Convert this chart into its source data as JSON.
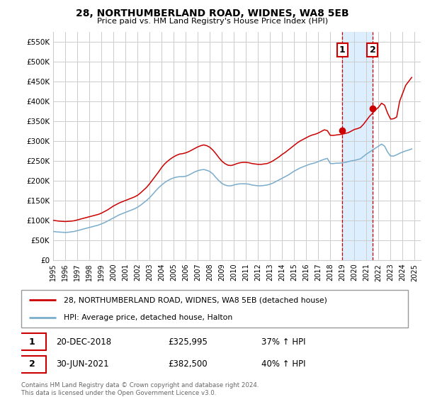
{
  "title": "28, NORTHUMBERLAND ROAD, WIDNES, WA8 5EB",
  "subtitle": "Price paid vs. HM Land Registry's House Price Index (HPI)",
  "ylim": [
    0,
    575000
  ],
  "xlim_start": 1995.0,
  "xlim_end": 2025.5,
  "yticks": [
    0,
    50000,
    100000,
    150000,
    200000,
    250000,
    300000,
    350000,
    400000,
    450000,
    500000,
    550000
  ],
  "ytick_labels": [
    "£0",
    "£50K",
    "£100K",
    "£150K",
    "£200K",
    "£250K",
    "£300K",
    "£350K",
    "£400K",
    "£450K",
    "£500K",
    "£550K"
  ],
  "xticks": [
    1995,
    1996,
    1997,
    1998,
    1999,
    2000,
    2001,
    2002,
    2003,
    2004,
    2005,
    2006,
    2007,
    2008,
    2009,
    2010,
    2011,
    2012,
    2013,
    2014,
    2015,
    2016,
    2017,
    2018,
    2019,
    2020,
    2021,
    2022,
    2023,
    2024,
    2025
  ],
  "bg_color": "#ffffff",
  "plot_bg_color": "#ffffff",
  "grid_color": "#cccccc",
  "red_line_color": "#cc0000",
  "blue_line_color": "#7aaccc",
  "highlight_bg_color": "#ddeeff",
  "vline_color": "#cc0000",
  "marker1_date": 2019.0,
  "marker2_date": 2021.5,
  "marker1_value": 325995,
  "marker2_value": 382500,
  "marker1_label": "1",
  "marker2_label": "2",
  "legend_label_red": "28, NORTHUMBERLAND ROAD, WIDNES, WA8 5EB (detached house)",
  "legend_label_blue": "HPI: Average price, detached house, Halton",
  "annotation1_text": "20-DEC-2018",
  "annotation1_price": "£325,995",
  "annotation1_hpi": "37% ↑ HPI",
  "annotation2_text": "30-JUN-2021",
  "annotation2_price": "£382,500",
  "annotation2_hpi": "40% ↑ HPI",
  "footer": "Contains HM Land Registry data © Crown copyright and database right 2024.\nThis data is licensed under the Open Government Licence v3.0.",
  "hpi_data_x": [
    1995.0,
    1995.25,
    1995.5,
    1995.75,
    1996.0,
    1996.25,
    1996.5,
    1996.75,
    1997.0,
    1997.25,
    1997.5,
    1997.75,
    1998.0,
    1998.25,
    1998.5,
    1998.75,
    1999.0,
    1999.25,
    1999.5,
    1999.75,
    2000.0,
    2000.25,
    2000.5,
    2000.75,
    2001.0,
    2001.25,
    2001.5,
    2001.75,
    2002.0,
    2002.25,
    2002.5,
    2002.75,
    2003.0,
    2003.25,
    2003.5,
    2003.75,
    2004.0,
    2004.25,
    2004.5,
    2004.75,
    2005.0,
    2005.25,
    2005.5,
    2005.75,
    2006.0,
    2006.25,
    2006.5,
    2006.75,
    2007.0,
    2007.25,
    2007.5,
    2007.75,
    2008.0,
    2008.25,
    2008.5,
    2008.75,
    2009.0,
    2009.25,
    2009.5,
    2009.75,
    2010.0,
    2010.25,
    2010.5,
    2010.75,
    2011.0,
    2011.25,
    2011.5,
    2011.75,
    2012.0,
    2012.25,
    2012.5,
    2012.75,
    2013.0,
    2013.25,
    2013.5,
    2013.75,
    2014.0,
    2014.25,
    2014.5,
    2014.75,
    2015.0,
    2015.25,
    2015.5,
    2015.75,
    2016.0,
    2016.25,
    2016.5,
    2016.75,
    2017.0,
    2017.25,
    2017.5,
    2017.75,
    2018.0,
    2018.25,
    2018.5,
    2018.75,
    2019.0,
    2019.25,
    2019.5,
    2019.75,
    2020.0,
    2020.25,
    2020.5,
    2020.75,
    2021.0,
    2021.25,
    2021.5,
    2021.75,
    2022.0,
    2022.25,
    2022.5,
    2022.75,
    2023.0,
    2023.25,
    2023.5,
    2023.75,
    2024.0,
    2024.25,
    2024.5,
    2024.75
  ],
  "hpi_data_y": [
    72000,
    71000,
    70500,
    70000,
    69500,
    70000,
    71000,
    72000,
    74000,
    76000,
    78000,
    80000,
    82000,
    84000,
    86000,
    88000,
    91000,
    94000,
    98000,
    102000,
    106000,
    110000,
    114000,
    117000,
    120000,
    123000,
    126000,
    129000,
    133000,
    138000,
    144000,
    150000,
    157000,
    165000,
    174000,
    182000,
    189000,
    195000,
    200000,
    204000,
    207000,
    209000,
    210000,
    210000,
    211000,
    214000,
    218000,
    222000,
    225000,
    227000,
    228000,
    226000,
    223000,
    217000,
    208000,
    200000,
    193000,
    189000,
    187000,
    187000,
    189000,
    191000,
    192000,
    192000,
    192000,
    191000,
    189000,
    188000,
    187000,
    187000,
    188000,
    189000,
    191000,
    194000,
    198000,
    202000,
    206000,
    210000,
    214000,
    219000,
    224000,
    228000,
    232000,
    235000,
    238000,
    241000,
    243000,
    245000,
    248000,
    251000,
    254000,
    256000,
    243000,
    243000,
    244000,
    244000,
    245000,
    246000,
    248000,
    250000,
    251000,
    253000,
    255000,
    261000,
    267000,
    272000,
    277000,
    282000,
    287000,
    292000,
    287000,
    272000,
    262000,
    262000,
    265000,
    269000,
    272000,
    275000,
    277000,
    280000
  ],
  "red_data_x": [
    1995.0,
    1995.25,
    1995.5,
    1995.75,
    1996.0,
    1996.25,
    1996.5,
    1996.75,
    1997.0,
    1997.25,
    1997.5,
    1997.75,
    1998.0,
    1998.25,
    1998.5,
    1998.75,
    1999.0,
    1999.25,
    1999.5,
    1999.75,
    2000.0,
    2000.25,
    2000.5,
    2000.75,
    2001.0,
    2001.25,
    2001.5,
    2001.75,
    2002.0,
    2002.25,
    2002.5,
    2002.75,
    2003.0,
    2003.25,
    2003.5,
    2003.75,
    2004.0,
    2004.25,
    2004.5,
    2004.75,
    2005.0,
    2005.25,
    2005.5,
    2005.75,
    2006.0,
    2006.25,
    2006.5,
    2006.75,
    2007.0,
    2007.25,
    2007.5,
    2007.75,
    2008.0,
    2008.25,
    2008.5,
    2008.75,
    2009.0,
    2009.25,
    2009.5,
    2009.75,
    2010.0,
    2010.25,
    2010.5,
    2010.75,
    2011.0,
    2011.25,
    2011.5,
    2011.75,
    2012.0,
    2012.25,
    2012.5,
    2012.75,
    2013.0,
    2013.25,
    2013.5,
    2013.75,
    2014.0,
    2014.25,
    2014.5,
    2014.75,
    2015.0,
    2015.25,
    2015.5,
    2015.75,
    2016.0,
    2016.25,
    2016.5,
    2016.75,
    2017.0,
    2017.25,
    2017.5,
    2017.75,
    2018.0,
    2018.25,
    2018.5,
    2018.75,
    2019.0,
    2019.25,
    2019.5,
    2019.75,
    2020.0,
    2020.25,
    2020.5,
    2020.75,
    2021.0,
    2021.25,
    2021.5,
    2021.75,
    2022.0,
    2022.25,
    2022.5,
    2022.75,
    2023.0,
    2023.25,
    2023.5,
    2023.75,
    2024.0,
    2024.25,
    2024.5,
    2024.75
  ],
  "red_data_y": [
    100000,
    99000,
    98000,
    97500,
    97000,
    97500,
    98000,
    99000,
    101000,
    103000,
    105000,
    107000,
    109000,
    111000,
    113000,
    115000,
    118000,
    122000,
    126000,
    131000,
    136000,
    140000,
    144000,
    147000,
    150000,
    153000,
    156000,
    159000,
    163000,
    169000,
    176000,
    183000,
    192000,
    202000,
    212000,
    222000,
    233000,
    242000,
    249000,
    255000,
    260000,
    264000,
    267000,
    268000,
    270000,
    273000,
    277000,
    281000,
    285000,
    288000,
    290000,
    288000,
    284000,
    277000,
    268000,
    258000,
    249000,
    243000,
    239000,
    238000,
    240000,
    243000,
    245000,
    246000,
    246000,
    245000,
    243000,
    242000,
    241000,
    241000,
    242000,
    243000,
    246000,
    250000,
    255000,
    260000,
    266000,
    271000,
    277000,
    283000,
    289000,
    295000,
    300000,
    304000,
    308000,
    312000,
    315000,
    317000,
    320000,
    324000,
    328000,
    326000,
    314000,
    314000,
    315000,
    316000,
    317000,
    319000,
    321000,
    325000,
    329000,
    331000,
    334000,
    342000,
    352000,
    362000,
    370000,
    378000,
    385000,
    395000,
    390000,
    370000,
    355000,
    356000,
    360000,
    400000,
    420000,
    440000,
    450000,
    460000
  ]
}
